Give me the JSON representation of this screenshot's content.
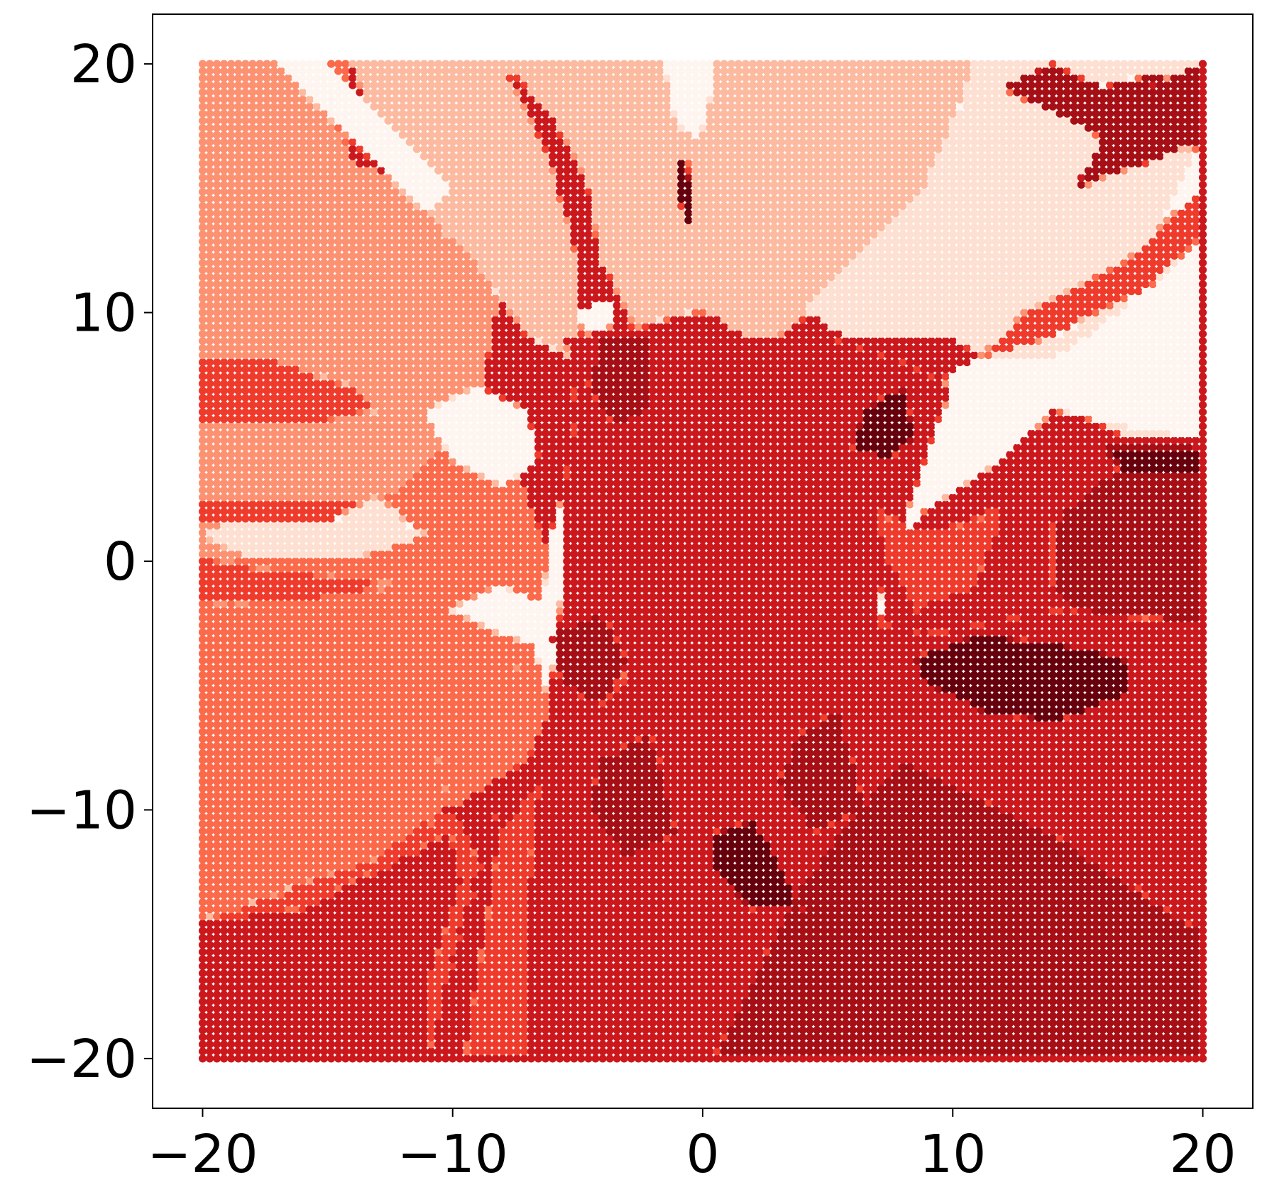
{
  "chart_data": {
    "type": "scatter",
    "title": "",
    "xlabel": "",
    "ylabel": "",
    "xlim": [
      -22,
      22
    ],
    "ylim": [
      -22,
      22
    ],
    "xticks": [
      -20,
      -10,
      0,
      10,
      20
    ],
    "yticks": [
      -20,
      -10,
      0,
      10,
      20
    ],
    "xtick_labels": [
      "−20",
      "−10",
      "0",
      "10",
      "20"
    ],
    "ytick_labels": [
      "−20",
      "−10",
      "0",
      "10",
      "20"
    ],
    "grid": false,
    "legend": "none",
    "colormap": "Reds",
    "palette": [
      "#fff5f0",
      "#fee0d2",
      "#fcbba1",
      "#fc9272",
      "#fb6a4a",
      "#ef3b2c",
      "#cb181d",
      "#a50f15",
      "#67000d"
    ],
    "point_grid": {
      "x_range": [
        -20,
        20
      ],
      "y_range": [
        -20,
        20
      ],
      "points_per_axis": 141
    },
    "regions": [
      {
        "level": 7,
        "polygon": [
          [
            -20,
            -20
          ],
          [
            20,
            -20
          ],
          [
            20,
            -20
          ],
          [
            -20,
            -20
          ]
        ]
      },
      {
        "level": 4,
        "polygon": [
          [
            -20,
            20
          ],
          [
            -20,
            -14.5
          ],
          [
            -13,
            -12
          ],
          [
            -9,
            -9
          ],
          [
            -6,
            -6
          ],
          [
            -6,
            0
          ],
          [
            -8,
            5
          ],
          [
            -11,
            9
          ],
          [
            -14,
            14
          ],
          [
            -14,
            20
          ]
        ]
      },
      {
        "level": 3,
        "polygon": [
          [
            -20,
            20
          ],
          [
            -20,
            0
          ],
          [
            -16,
            0
          ],
          [
            -12,
            3
          ],
          [
            -9,
            6
          ],
          [
            -8,
            11
          ],
          [
            -9,
            14
          ],
          [
            -14,
            16
          ],
          [
            -16,
            20
          ]
        ]
      },
      {
        "level": 2,
        "polygon": [
          [
            -14,
            20
          ],
          [
            -8,
            20
          ],
          [
            -6,
            16
          ],
          [
            -5,
            12
          ],
          [
            -5,
            8
          ],
          [
            -7,
            9
          ],
          [
            -9,
            12
          ],
          [
            -12,
            15
          ]
        ]
      },
      {
        "level": 2,
        "polygon": [
          [
            -8,
            20
          ],
          [
            11,
            20
          ],
          [
            9,
            15
          ],
          [
            6,
            11
          ],
          [
            3,
            9
          ],
          [
            0,
            8
          ],
          [
            -2,
            8
          ],
          [
            -3,
            10
          ],
          [
            -4,
            12
          ],
          [
            -4.5,
            15
          ],
          [
            -6,
            18
          ]
        ]
      },
      {
        "level": 1,
        "polygon": [
          [
            11,
            20
          ],
          [
            20,
            20
          ],
          [
            20,
            5
          ],
          [
            17,
            5
          ],
          [
            13,
            7
          ],
          [
            10,
            9
          ],
          [
            6,
            9
          ],
          [
            4,
            10
          ],
          [
            6,
            12
          ],
          [
            9,
            15
          ]
        ]
      },
      {
        "level": 0,
        "polygon": [
          [
            20,
            17
          ],
          [
            20,
            5
          ],
          [
            17,
            5.5
          ],
          [
            14,
            6
          ],
          [
            12,
            4
          ],
          [
            9,
            2
          ],
          [
            7,
            0
          ],
          [
            7.5,
            -2.5
          ],
          [
            6,
            -1
          ],
          [
            5.5,
            3
          ],
          [
            7,
            5
          ],
          [
            9,
            7
          ],
          [
            11,
            8
          ],
          [
            14,
            8
          ],
          [
            17,
            10
          ]
        ]
      },
      {
        "level": 0,
        "polygon": [
          [
            -17,
            20
          ],
          [
            -15,
            20
          ],
          [
            -12,
            17
          ],
          [
            -10,
            15
          ],
          [
            -11,
            14
          ],
          [
            -13,
            16
          ]
        ]
      },
      {
        "level": 0,
        "polygon": [
          [
            -1.5,
            20
          ],
          [
            0.5,
            20
          ],
          [
            0,
            17
          ],
          [
            -1,
            17.5
          ]
        ]
      },
      {
        "level": 0,
        "polygon": [
          [
            -11,
            6
          ],
          [
            -9,
            7
          ],
          [
            -7,
            6
          ],
          [
            -6.5,
            4
          ],
          [
            -8,
            3
          ],
          [
            -10,
            4
          ]
        ]
      },
      {
        "level": 0,
        "polygon": [
          [
            -10,
            -2
          ],
          [
            -8,
            -1
          ],
          [
            -6,
            -2
          ],
          [
            -6.5,
            -3.5
          ],
          [
            -8,
            -3
          ]
        ]
      },
      {
        "level": 0,
        "polygon": [
          [
            -5,
            10
          ],
          [
            -3.5,
            10.5
          ],
          [
            -4,
            8
          ],
          [
            -5,
            4
          ],
          [
            -6,
            1
          ],
          [
            -6.5,
            -3
          ],
          [
            -7,
            -6
          ],
          [
            -5.5,
            -5
          ],
          [
            -5,
            -1
          ],
          [
            -4.5,
            3
          ],
          [
            -4,
            7
          ]
        ]
      },
      {
        "level": 0,
        "polygon": [
          [
            -1.5,
            -4.5
          ],
          [
            1,
            -5
          ],
          [
            2,
            -7
          ],
          [
            0,
            -8
          ],
          [
            -1.5,
            -6.5
          ]
        ]
      },
      {
        "level": 1,
        "polygon": [
          [
            -20,
            1
          ],
          [
            -18,
            2
          ],
          [
            -13,
            2.5
          ],
          [
            -11,
            1
          ],
          [
            -14,
            0
          ],
          [
            -18,
            0
          ]
        ]
      },
      {
        "level": 1,
        "polygon": [
          [
            -4,
            -6.5
          ],
          [
            -2,
            -6
          ],
          [
            0,
            -8
          ],
          [
            1,
            -9
          ],
          [
            -1,
            -9
          ],
          [
            -3,
            -7.5
          ]
        ]
      },
      {
        "level": 6,
        "polygon": [
          [
            -5.5,
            9
          ],
          [
            -2,
            9.5
          ],
          [
            0,
            10
          ],
          [
            2,
            9
          ],
          [
            5,
            9
          ],
          [
            8,
            8
          ],
          [
            10,
            7
          ],
          [
            9,
            4
          ],
          [
            7.5,
            0
          ],
          [
            7,
            -2.5
          ],
          [
            9,
            -3
          ],
          [
            14,
            -2
          ],
          [
            20,
            -2.5
          ],
          [
            20,
            -20
          ],
          [
            -11,
            -20
          ],
          [
            -9,
            -13
          ],
          [
            -7.5,
            -8
          ],
          [
            -6,
            -5
          ],
          [
            -5.5,
            -1
          ],
          [
            -5.5,
            3
          ],
          [
            -5,
            6
          ]
        ]
      },
      {
        "level": 5,
        "polygon": [
          [
            -20,
            -14.5
          ],
          [
            -13,
            -12
          ],
          [
            -10,
            -10
          ],
          [
            -9,
            -12
          ],
          [
            -11,
            -20
          ],
          [
            -20,
            -20
          ]
        ]
      },
      {
        "level": 5,
        "polygon": [
          [
            -20,
            8
          ],
          [
            -17,
            8
          ],
          [
            -14,
            7
          ],
          [
            -13,
            6
          ],
          [
            -16,
            5.5
          ],
          [
            -20,
            5.5
          ]
        ]
      },
      {
        "level": 5,
        "polygon": [
          [
            -20,
            2.5
          ],
          [
            -17,
            2.5
          ],
          [
            -13,
            2.5
          ],
          [
            -15,
            1.5
          ],
          [
            -20,
            1.5
          ]
        ]
      },
      {
        "level": 5,
        "polygon": [
          [
            -20,
            0
          ],
          [
            -16,
            -0.5
          ],
          [
            -12,
            -1
          ],
          [
            -16,
            -1.7
          ],
          [
            -20,
            -1.8
          ]
        ]
      },
      {
        "level": 5,
        "polygon": [
          [
            7,
            2
          ],
          [
            9,
            1
          ],
          [
            12,
            2
          ],
          [
            11,
            -1
          ],
          [
            8.5,
            -2
          ],
          [
            7.5,
            0
          ]
        ]
      },
      {
        "level": 5,
        "polygon": [
          [
            11,
            8
          ],
          [
            14,
            9
          ],
          [
            18,
            11
          ],
          [
            20,
            13
          ],
          [
            20,
            15
          ],
          [
            17,
            12
          ],
          [
            13,
            10
          ]
        ]
      },
      {
        "level": 5,
        "polygon": [
          [
            -9.5,
            -20
          ],
          [
            -7,
            -20
          ],
          [
            -7,
            -14
          ],
          [
            -6.5,
            -9
          ],
          [
            -8,
            -11
          ]
        ]
      },
      {
        "level": 5,
        "polygon": [
          [
            -5,
            -3.5
          ],
          [
            -3.5,
            -3
          ],
          [
            -3,
            -5
          ],
          [
            -4,
            -6
          ],
          [
            -5,
            -5
          ]
        ]
      },
      {
        "level": 7,
        "polygon": [
          [
            12,
            19
          ],
          [
            16,
            17
          ],
          [
            20,
            16.5
          ],
          [
            20,
            19
          ],
          [
            18,
            19.5
          ],
          [
            16,
            19
          ],
          [
            14,
            20
          ]
        ]
      },
      {
        "level": 7,
        "polygon": [
          [
            15,
            15
          ],
          [
            18,
            16
          ],
          [
            20,
            17
          ],
          [
            20,
            20
          ],
          [
            18,
            19
          ],
          [
            16,
            17
          ]
        ]
      },
      {
        "level": 7,
        "polygon": [
          [
            14,
            1.5
          ],
          [
            17,
            4
          ],
          [
            20,
            4.5
          ],
          [
            20,
            -2.5
          ],
          [
            15,
            -2
          ],
          [
            14,
            -1
          ]
        ]
      },
      {
        "level": 7,
        "polygon": [
          [
            -4,
            -8
          ],
          [
            -2,
            -7
          ],
          [
            -1,
            -11
          ],
          [
            -3,
            -12
          ],
          [
            -4.5,
            -10
          ]
        ]
      },
      {
        "level": 7,
        "polygon": [
          [
            4,
            -7
          ],
          [
            5.5,
            -6
          ],
          [
            6.5,
            -10
          ],
          [
            4.5,
            -11
          ],
          [
            3,
            -9
          ]
        ]
      },
      {
        "level": 7,
        "polygon": [
          [
            0.5,
            -20
          ],
          [
            20,
            -20
          ],
          [
            20,
            -15
          ],
          [
            14,
            -11
          ],
          [
            8,
            -8
          ],
          [
            4,
            -13
          ],
          [
            2,
            -17
          ]
        ]
      },
      {
        "level": 7,
        "polygon": [
          [
            -4,
            9
          ],
          [
            -2,
            9
          ],
          [
            -2,
            6
          ],
          [
            -3.5,
            5.5
          ],
          [
            -4.5,
            7
          ]
        ]
      },
      {
        "level": 7,
        "polygon": [
          [
            -6,
            -3
          ],
          [
            -4,
            -2
          ],
          [
            -3,
            -4
          ],
          [
            -4,
            -6
          ],
          [
            -5.5,
            -5
          ]
        ]
      },
      {
        "level": 8,
        "polygon": [
          [
            8.5,
            -4
          ],
          [
            11,
            -3
          ],
          [
            15,
            -3.5
          ],
          [
            17,
            -4
          ],
          [
            17,
            -5.5
          ],
          [
            14,
            -6.5
          ],
          [
            11,
            -6
          ],
          [
            9,
            -5
          ]
        ]
      },
      {
        "level": 8,
        "polygon": [
          [
            0.5,
            -11
          ],
          [
            2,
            -10.5
          ],
          [
            3,
            -12
          ],
          [
            4,
            -14
          ],
          [
            2,
            -14
          ],
          [
            0.5,
            -12.5
          ]
        ]
      },
      {
        "level": 8,
        "polygon": [
          [
            6.5,
            6
          ],
          [
            8,
            7
          ],
          [
            8.5,
            5
          ],
          [
            7.5,
            4
          ],
          [
            6,
            4.5
          ]
        ]
      },
      {
        "level": 8,
        "polygon": [
          [
            16,
            4.5
          ],
          [
            20,
            4.5
          ],
          [
            20,
            3.5
          ],
          [
            17,
            3.5
          ]
        ]
      },
      {
        "level": 8,
        "polygon": [
          [
            -1,
            16
          ],
          [
            -0.5,
            16
          ],
          [
            -0.3,
            13
          ],
          [
            -0.8,
            14
          ]
        ]
      },
      {
        "level": 6,
        "polygon": [
          [
            -20,
            -20
          ],
          [
            -20,
            -14.5
          ],
          [
            -16,
            -14
          ],
          [
            -12,
            -12
          ],
          [
            -10,
            -11
          ],
          [
            -9.5,
            -13
          ],
          [
            -11,
            -17
          ],
          [
            -11,
            -20
          ]
        ]
      },
      {
        "level": 4,
        "polygon": [
          [
            -10,
            -10
          ],
          [
            -7,
            -8
          ],
          [
            -6,
            -6
          ],
          [
            -6.5,
            -4
          ],
          [
            -8,
            -4.5
          ],
          [
            -10.5,
            -8
          ]
        ]
      }
    ]
  }
}
